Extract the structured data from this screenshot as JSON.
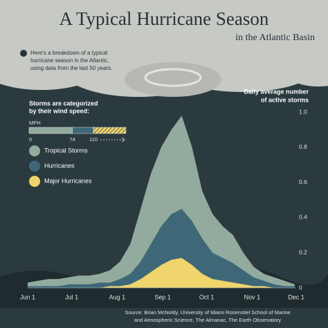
{
  "header": {
    "title": "A Typical Hurricane Season",
    "subtitle": "in the Atlantic Basin",
    "intro": [
      "Here's a breakdown of a typical",
      "hurricane season in the Atlantic,",
      "using data from the last 50 years."
    ]
  },
  "legend": {
    "heading": [
      "Storms are categorized",
      "by their wind speed:"
    ],
    "unit": "MPH",
    "wind_scale": [
      0,
      74,
      110
    ]
  },
  "chart_data": {
    "type": "area",
    "y_label": [
      "Daily average number",
      "of active storms"
    ],
    "x": [
      "Jun 1",
      "Jun 8",
      "Jun 15",
      "Jun 22",
      "Jun 29",
      "Jul 6",
      "Jul 13",
      "Jul 20",
      "Jul 27",
      "Aug 3",
      "Aug 10",
      "Aug 17",
      "Aug 24",
      "Aug 31",
      "Sep 7",
      "Sep 14",
      "Sep 21",
      "Sep 28",
      "Oct 5",
      "Oct 12",
      "Oct 19",
      "Oct 26",
      "Nov 2",
      "Nov 9",
      "Nov 16",
      "Nov 23",
      "Nov 30"
    ],
    "xticks": [
      "Jun 1",
      "Jul 1",
      "Aug 1",
      "Sep 1",
      "Oct 1",
      "Nov 1",
      "Dec 1"
    ],
    "xlim": [
      "Jun 1",
      "Dec 1"
    ],
    "ylim": [
      0,
      1
    ],
    "yticks": [
      0,
      0.2,
      0.4,
      0.6,
      0.8,
      {
        "value": 1,
        "label": "1.0"
      }
    ],
    "grid": false,
    "series": [
      {
        "name": "Tropical Storms",
        "color": "#93ab9e",
        "values": [
          0.03,
          0.04,
          0.05,
          0.05,
          0.06,
          0.07,
          0.07,
          0.08,
          0.1,
          0.15,
          0.25,
          0.45,
          0.65,
          0.8,
          0.9,
          0.98,
          0.8,
          0.55,
          0.42,
          0.35,
          0.3,
          0.2,
          0.12,
          0.08,
          0.06,
          0.04,
          0.02
        ]
      },
      {
        "name": "Hurricanes",
        "color": "#3e6878",
        "values": [
          0.01,
          0.01,
          0.01,
          0.01,
          0.02,
          0.02,
          0.02,
          0.03,
          0.03,
          0.05,
          0.08,
          0.15,
          0.25,
          0.35,
          0.42,
          0.45,
          0.38,
          0.28,
          0.2,
          0.17,
          0.14,
          0.1,
          0.06,
          0.04,
          0.02,
          0.01,
          0.01
        ]
      },
      {
        "name": "Major Hurricanes",
        "color": "#f0d56c",
        "values": [
          0,
          0,
          0,
          0,
          0,
          0,
          0,
          0,
          0.01,
          0.01,
          0.02,
          0.05,
          0.09,
          0.13,
          0.16,
          0.17,
          0.13,
          0.08,
          0.05,
          0.04,
          0.03,
          0.02,
          0.01,
          0.01,
          0,
          0,
          0
        ]
      }
    ]
  },
  "footer": {
    "source": [
      "Source:  Brian McNoldy, University of Miami Rosenstiel School of Marine",
      "and Atmospheric Science, The Almanac, The Earth Observatory"
    ]
  }
}
